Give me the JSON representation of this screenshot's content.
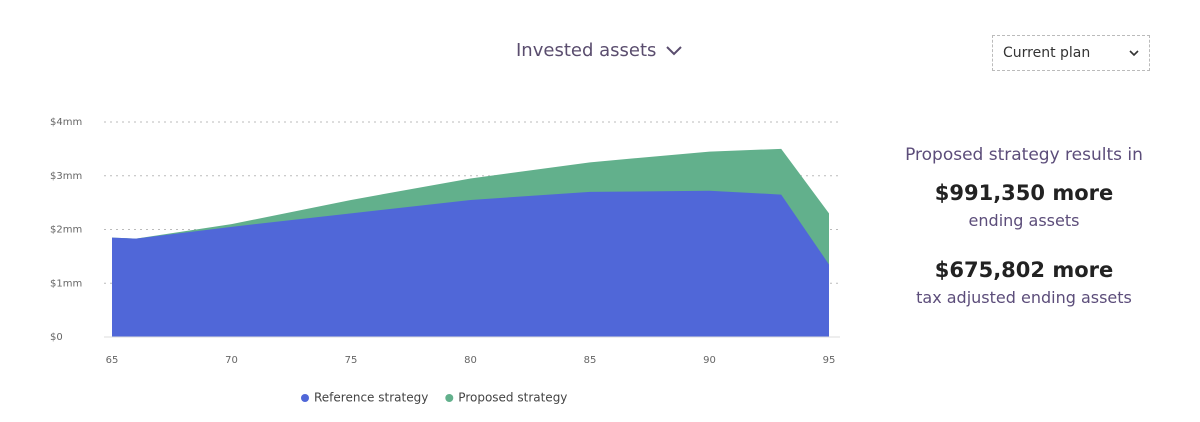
{
  "header": {
    "title": "Invested assets"
  },
  "dropdown": {
    "label": "Current plan"
  },
  "summary": {
    "intro": "Proposed strategy results in",
    "items": [
      {
        "value": "$991,350 more",
        "label": "ending assets"
      },
      {
        "value": "$675,802 more",
        "label": "tax adjusted ending assets"
      }
    ]
  },
  "chart_data": {
    "type": "area",
    "x": [
      65,
      66,
      70,
      75,
      80,
      85,
      90,
      93,
      95
    ],
    "series": [
      {
        "name": "Reference strategy",
        "color": "#5067d8",
        "values": [
          1.85,
          1.83,
          2.05,
          2.3,
          2.55,
          2.7,
          2.72,
          2.65,
          1.35
        ]
      },
      {
        "name": "Proposed strategy",
        "color": "#62b08c",
        "values": [
          1.85,
          1.83,
          2.1,
          2.55,
          2.95,
          3.25,
          3.45,
          3.5,
          2.3
        ]
      }
    ],
    "xlim": [
      65,
      95
    ],
    "xticks": [
      65,
      70,
      75,
      80,
      85,
      90,
      95
    ],
    "ylim": [
      0,
      4
    ],
    "yticks": [
      {
        "value": 0,
        "label": "$0"
      },
      {
        "value": 1,
        "label": "$1mm"
      },
      {
        "value": 2,
        "label": "$2mm"
      },
      {
        "value": 3,
        "label": "$3mm"
      },
      {
        "value": 4,
        "label": "$4mm"
      }
    ],
    "grid": true,
    "legend": "bottom"
  }
}
